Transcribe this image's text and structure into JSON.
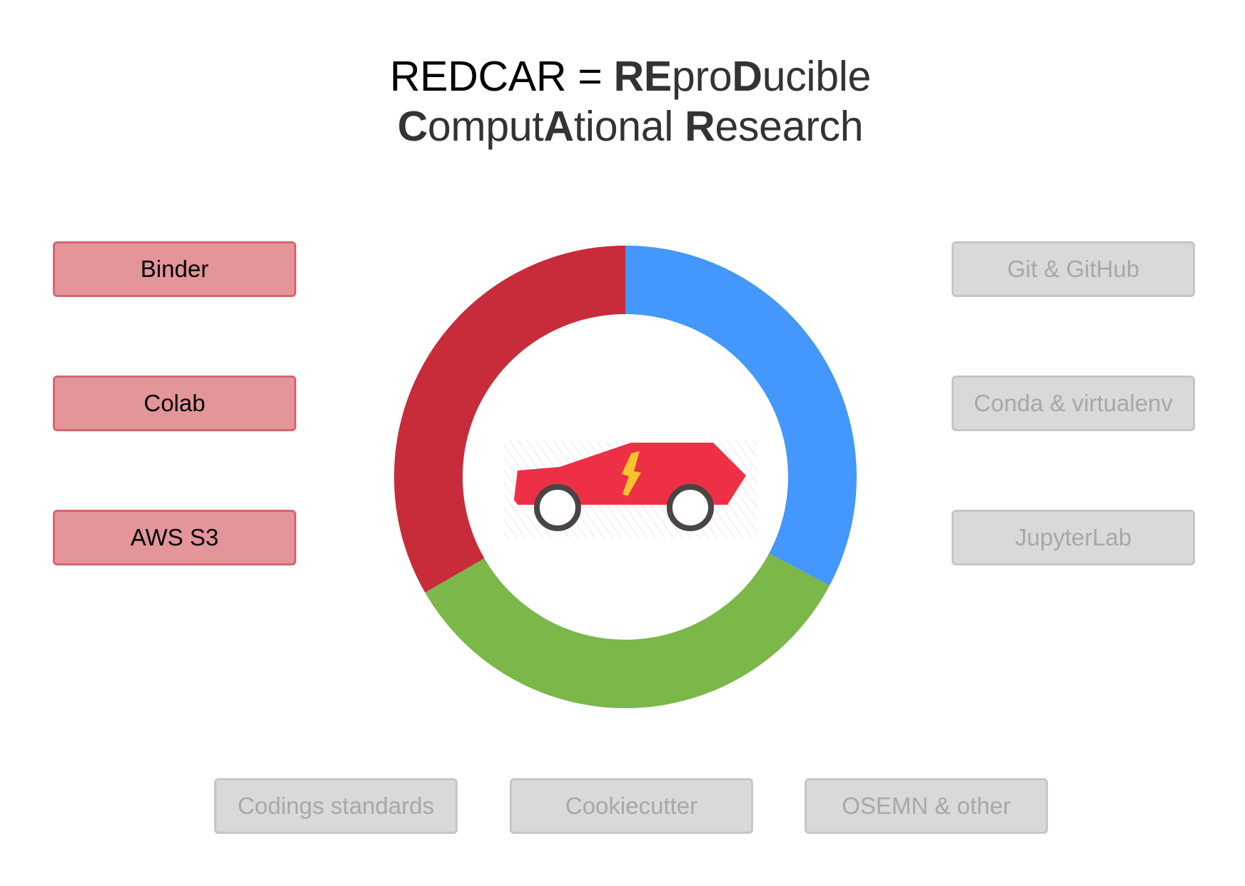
{
  "title": {
    "line1_prefix": "REDCAR = ",
    "line1_parts": [
      {
        "text": "RE",
        "bold": true
      },
      {
        "text": "pro",
        "bold": false
      },
      {
        "text": "D",
        "bold": true
      },
      {
        "text": "ucible",
        "bold": false
      }
    ],
    "line2_parts": [
      {
        "text": "C",
        "bold": true
      },
      {
        "text": "omput",
        "bold": false
      },
      {
        "text": "A",
        "bold": true
      },
      {
        "text": "tional ",
        "bold": false
      },
      {
        "text": "R",
        "bold": true
      },
      {
        "text": "esearch",
        "bold": false
      }
    ]
  },
  "left_boxes": [
    "Binder",
    "Colab",
    "AWS S3"
  ],
  "right_boxes": [
    "Git & GitHub",
    "Conda & virtualenv",
    "JupyterLab"
  ],
  "bottom_boxes": [
    "Codings standards",
    "Cookiecutter",
    "OSEMN & other"
  ],
  "ring": {
    "segments": [
      {
        "name": "blue",
        "color": "#4397fd",
        "start_deg": 0,
        "end_deg": 118
      },
      {
        "name": "green",
        "color": "#7cb749",
        "start_deg": 118,
        "end_deg": 240
      },
      {
        "name": "red",
        "color": "#c82c3a",
        "start_deg": 240,
        "end_deg": 360
      }
    ]
  },
  "colors": {
    "red_box_fill": "#e4959a",
    "red_box_border": "#d66770",
    "grey_box_fill": "#d9d9d9",
    "grey_box_text": "#a8a8a8",
    "car_body": "#ee3046",
    "car_bolt": "#f8c42c",
    "wheel": "#4a4444"
  },
  "icons": {
    "center": "electric-car-icon"
  }
}
